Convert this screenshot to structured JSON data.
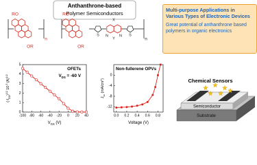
{
  "header": {
    "title": "Anthanthrone-based",
    "subtitle": "Polymer Semiconductors"
  },
  "structure": {
    "labels": [
      "RO",
      "OR",
      "n",
      "RO",
      "OR",
      "S",
      "X",
      "N",
      "N",
      "Y",
      "S",
      "n"
    ]
  },
  "highlight": {
    "title": "Multi-purpose Applications in Various Types of Electronic Devices",
    "text": "Great potential of anthanthrone based polymers in organic electronics"
  },
  "chart_data": [
    {
      "type": "line",
      "x": [
        -100,
        -90,
        -80,
        -70,
        -60,
        -50,
        -40,
        -30,
        -20,
        -10,
        0,
        10,
        20,
        30,
        40
      ],
      "series": [
        {
          "color": "#e0201b",
          "marker": "open",
          "values": [
            4.6,
            4.2,
            3.8,
            3.4,
            3.0,
            2.6,
            2.2,
            1.8,
            1.4,
            0.9,
            0.4,
            0.1,
            0.02,
            0.01,
            0.01
          ]
        }
      ],
      "xlim": [
        -100,
        40
      ],
      "ylim": [
        0,
        5
      ],
      "xticks": [
        -100,
        -80,
        -60,
        -40,
        -20,
        0,
        20,
        40
      ],
      "yticks": [
        0,
        1,
        2,
        3,
        4,
        5
      ],
      "x_label": [
        {
          "text": "V"
        },
        {
          "text": "GS",
          "shift": "sub"
        },
        {
          "text": " (V)"
        }
      ],
      "y_label": [
        {
          "text": "(-I"
        },
        {
          "text": "DS",
          "shift": "sub"
        },
        {
          "text": ")"
        },
        {
          "text": "1/2",
          "shift": "super"
        },
        {
          "text": " 10"
        },
        {
          "text": "-3",
          "shift": "super"
        },
        {
          "text": " (A)"
        },
        {
          "text": "1/2",
          "shift": "super"
        }
      ],
      "annotations": [
        [
          {
            "text": "OFETs"
          }
        ],
        [
          {
            "text": "V"
          },
          {
            "text": "DS",
            "shift": "sub"
          },
          {
            "text": " = -60 V"
          }
        ]
      ]
    },
    {
      "type": "line",
      "x": [
        0,
        0.1,
        0.2,
        0.3,
        0.4,
        0.5,
        0.6,
        0.7,
        0.75,
        0.8,
        0.85
      ],
      "series": [
        {
          "color": "#e0201b",
          "marker": "filled",
          "values": [
            -12.3,
            -12.2,
            -12.1,
            -11.9,
            -11.6,
            -11.1,
            -10.2,
            -7.5,
            -4.5,
            0,
            4
          ]
        }
      ],
      "xlim": [
        -0.05,
        0.9
      ],
      "ylim": [
        -14,
        4
      ],
      "xticks": [
        {
          "value": 0,
          "label": "0.0"
        },
        {
          "value": 0.2,
          "label": "0.2"
        },
        {
          "value": 0.4,
          "label": "0.4"
        },
        {
          "value": 0.6,
          "label": "0.6"
        },
        {
          "value": 0.8,
          "label": "0.8"
        }
      ],
      "yticks": [
        -12,
        -8,
        -4,
        0
      ],
      "x_label": [
        {
          "text": "Voltage (V)"
        }
      ],
      "y_label": [
        {
          "text": "J"
        },
        {
          "text": "sc",
          "shift": "sub"
        },
        {
          "text": " (mA/cm"
        },
        {
          "text": "2",
          "shift": "super"
        },
        {
          "text": ")"
        }
      ],
      "annotations": [
        [
          {
            "text": "Non-fullerene OPVs"
          }
        ]
      ]
    }
  ],
  "sensor": {
    "title": "Chemical Sensors",
    "layers": [
      "Semiconductor",
      "Substrate"
    ]
  }
}
